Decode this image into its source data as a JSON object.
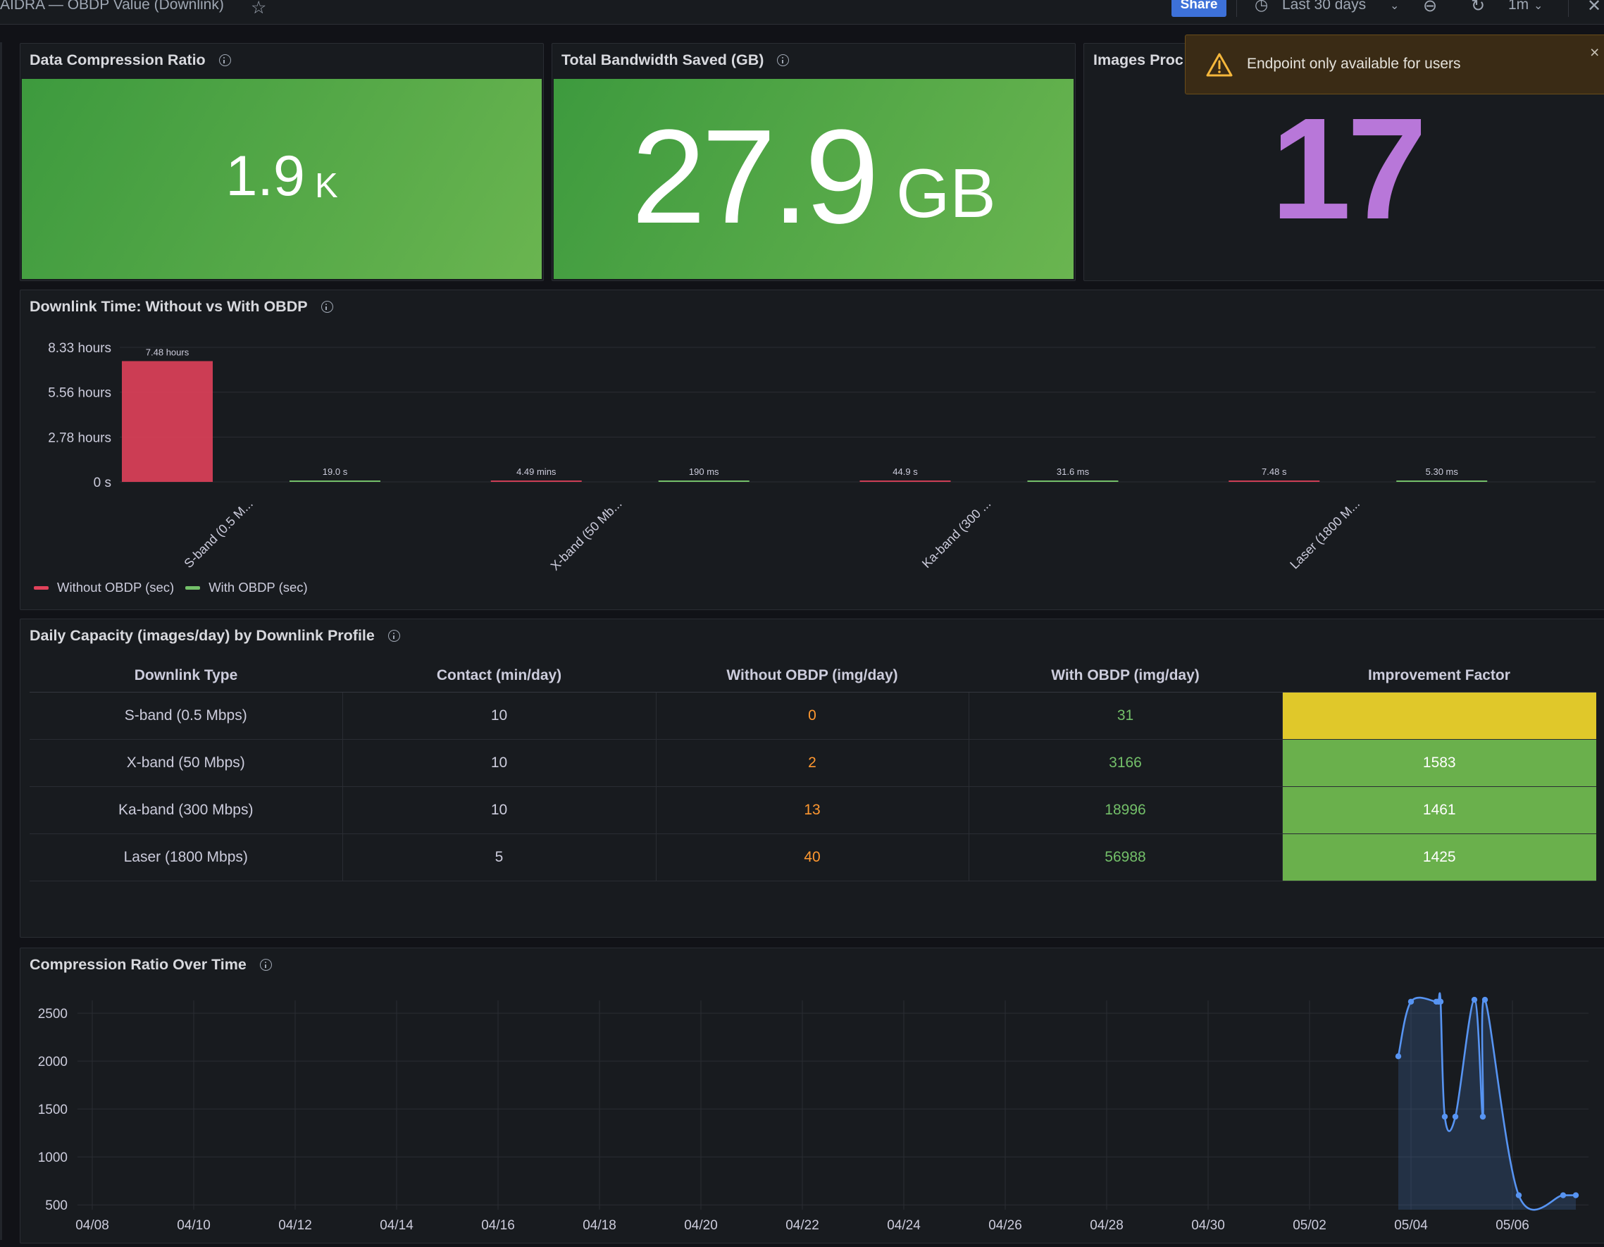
{
  "topbar": {
    "dashboard_title": "AIDRA — OBDP Value (Downlink)",
    "share_label": "Share",
    "time_range": "Last 30 days",
    "refresh_interval": "1m"
  },
  "toast": {
    "message": "Endpoint only available for users",
    "close": "×"
  },
  "panels": {
    "compression": {
      "title": "Data Compression Ratio",
      "value": "1.9",
      "unit": "K"
    },
    "bandwidth": {
      "title": "Total Bandwidth Saved (GB)",
      "value": "27.9",
      "unit": "GB"
    },
    "images": {
      "title": "Images Proc",
      "value": "17"
    },
    "downlink_chart": {
      "title": "Downlink Time: Without vs With OBDP"
    },
    "capacity": {
      "title": "Daily Capacity (images/day) by Downlink Profile"
    },
    "ratio_chart": {
      "title": "Compression Ratio Over Time"
    }
  },
  "colors": {
    "without": "#e0415a",
    "with": "#73bf69",
    "line": "#5794f2",
    "stat_green": "#56a64b",
    "stat_purple": "#b877d9",
    "warning": "#f5b73b"
  },
  "capacity_table": {
    "headers": [
      "Downlink Type",
      "Contact (min/day)",
      "Without OBDP (img/day)",
      "With OBDP (img/day)",
      "Improvement Factor"
    ],
    "rows": [
      [
        "S-band (0.5 Mbps)",
        "10",
        "0",
        "31",
        ""
      ],
      [
        "X-band (50 Mbps)",
        "10",
        "2",
        "3166",
        "1583"
      ],
      [
        "Ka-band (300 Mbps)",
        "10",
        "13",
        "18996",
        "1461"
      ],
      [
        "Laser (1800 Mbps)",
        "5",
        "40",
        "56988",
        "1425"
      ]
    ]
  },
  "chart_data": [
    {
      "type": "bar",
      "title": "Downlink Time: Without vs With OBDP",
      "categories": [
        "S-band (0.5 M...",
        "X-band (50 Mb...",
        "Ka-band (300 ...",
        "Laser (1800 M..."
      ],
      "ylim": [
        0,
        30000
      ],
      "yticks": [
        {
          "value": 0,
          "label": "0 s"
        },
        {
          "value": 10000,
          "label": "2.78 hours"
        },
        {
          "value": 20000,
          "label": "5.56 hours"
        },
        {
          "value": 30000,
          "label": "8.33 hours"
        }
      ],
      "legend_position": "bottom-left",
      "series": [
        {
          "name": "Without OBDP (sec)",
          "values": [
            26928,
            269.4,
            44.9,
            7.48
          ],
          "labels": [
            "7.48 hours",
            "4.49 mins",
            "44.9 s",
            "7.48 s"
          ]
        },
        {
          "name": "With OBDP (sec)",
          "values": [
            19.0,
            0.19,
            0.0316,
            0.0053
          ],
          "labels": [
            "19.0 s",
            "190 ms",
            "31.6 ms",
            "5.30 ms"
          ]
        }
      ]
    },
    {
      "type": "line",
      "title": "Compression Ratio Over Time",
      "xlabel": "",
      "ylabel": "",
      "x_ticks": [
        "04/08",
        "04/10",
        "04/12",
        "04/14",
        "04/16",
        "04/18",
        "04/20",
        "04/22",
        "04/24",
        "04/26",
        "04/28",
        "04/30",
        "05/02",
        "05/04",
        "05/06"
      ],
      "y_ticks": [
        500,
        1000,
        1500,
        2000,
        2500
      ],
      "ylim": [
        450,
        2780
      ],
      "x_range": [
        "2025-04-08",
        "2025-05-07"
      ],
      "series": [
        {
          "points": [
            [
              "2025-05-03T18:00",
              2050
            ],
            [
              "2025-05-04T00:00",
              2620
            ],
            [
              "2025-05-04T12:00",
              2620
            ],
            [
              "2025-05-04T13:00",
              2620
            ],
            [
              "2025-05-04T14:00",
              2620
            ],
            [
              "2025-05-04T16:00",
              1420
            ],
            [
              "2025-05-04T21:00",
              1420
            ],
            [
              "2025-05-05T06:00",
              2640
            ],
            [
              "2025-05-05T10:00",
              1420
            ],
            [
              "2025-05-05T11:00",
              2640
            ],
            [
              "2025-05-06T03:00",
              600
            ],
            [
              "2025-05-07T00:00",
              600
            ],
            [
              "2025-05-07T06:00",
              600
            ]
          ]
        }
      ]
    }
  ]
}
